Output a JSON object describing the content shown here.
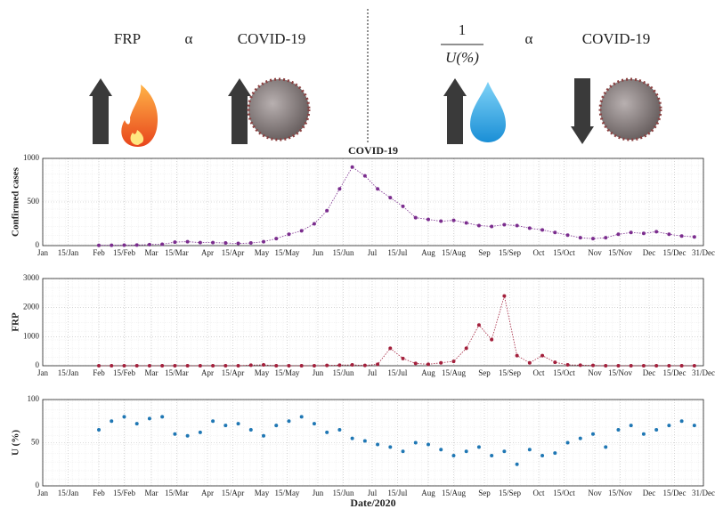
{
  "header": {
    "left": {
      "a": "FRP",
      "rel": "α",
      "b": "COVID-19"
    },
    "right": {
      "numerator": "1",
      "denominator": "U(%)",
      "rel": "α",
      "b": "COVID-19"
    }
  },
  "chart_data": [
    {
      "type": "line",
      "title": "COVID-19",
      "ylabel": "Confirmed cases",
      "x": [
        "1/Feb",
        "8/Feb",
        "15/Feb",
        "22/Feb",
        "29/Feb",
        "7/Mar",
        "14/Mar",
        "21/Mar",
        "28/Mar",
        "4/Apr",
        "11/Apr",
        "18/Apr",
        "25/Apr",
        "2/May",
        "9/May",
        "16/May",
        "23/May",
        "30/May",
        "6/Jun",
        "13/Jun",
        "20/Jun",
        "27/Jun",
        "4/Jul",
        "11/Jul",
        "18/Jul",
        "25/Jul",
        "1/Aug",
        "8/Aug",
        "15/Aug",
        "22/Aug",
        "29/Aug",
        "5/Sep",
        "12/Sep",
        "19/Sep",
        "26/Sep",
        "3/Oct",
        "10/Oct",
        "17/Oct",
        "24/Oct",
        "31/Oct",
        "7/Nov",
        "14/Nov",
        "21/Nov",
        "28/Nov",
        "5/Dec",
        "12/Dec",
        "19/Dec",
        "26/Dec"
      ],
      "series": [
        {
          "name": "Confirmed cases",
          "color": "#7b2d8e",
          "values": [
            3,
            4,
            5,
            6,
            12,
            15,
            40,
            45,
            35,
            35,
            30,
            25,
            30,
            45,
            80,
            130,
            170,
            250,
            400,
            650,
            900,
            800,
            650,
            550,
            450,
            320,
            300,
            280,
            290,
            260,
            230,
            220,
            240,
            230,
            200,
            180,
            150,
            120,
            90,
            80,
            90,
            130,
            150,
            140,
            160,
            130,
            110,
            100
          ]
        }
      ],
      "xlim": [
        "Jan",
        "31/Dec"
      ],
      "xticks": [
        "Jan",
        "15/Jan",
        "Feb",
        "15/Feb",
        "Mar",
        "15/Mar",
        "Apr",
        "15/Apr",
        "May",
        "15/May",
        "Jun",
        "15/Jun",
        "Jul",
        "15/Jul",
        "Aug",
        "15/Aug",
        "Sep",
        "15/Sep",
        "Oct",
        "15/Oct",
        "Nov",
        "15/Nov",
        "Dec",
        "15/Dec",
        "31/Dec"
      ],
      "ylim": [
        0,
        1000
      ],
      "yticks": [
        0,
        500,
        1000
      ],
      "grid": true
    },
    {
      "type": "line",
      "ylabel": "FRP",
      "x": [
        "1/Feb",
        "8/Feb",
        "15/Feb",
        "22/Feb",
        "29/Feb",
        "7/Mar",
        "14/Mar",
        "21/Mar",
        "28/Mar",
        "4/Apr",
        "11/Apr",
        "18/Apr",
        "25/Apr",
        "2/May",
        "9/May",
        "16/May",
        "23/May",
        "30/May",
        "6/Jun",
        "13/Jun",
        "20/Jun",
        "27/Jun",
        "4/Jul",
        "11/Jul",
        "18/Jul",
        "25/Jul",
        "1/Aug",
        "8/Aug",
        "15/Aug",
        "22/Aug",
        "29/Aug",
        "5/Sep",
        "12/Sep",
        "19/Sep",
        "26/Sep",
        "3/Oct",
        "10/Oct",
        "17/Oct",
        "24/Oct",
        "31/Oct",
        "7/Nov",
        "14/Nov",
        "21/Nov",
        "28/Nov",
        "5/Dec",
        "12/Dec",
        "19/Dec",
        "26/Dec"
      ],
      "series": [
        {
          "name": "FRP",
          "color": "#a3203c",
          "values": [
            0,
            0,
            0,
            0,
            0,
            0,
            0,
            0,
            0,
            0,
            0,
            0,
            20,
            30,
            0,
            0,
            0,
            0,
            10,
            20,
            30,
            10,
            50,
            600,
            250,
            80,
            50,
            100,
            150,
            600,
            1400,
            900,
            2400,
            350,
            100,
            350,
            120,
            30,
            20,
            10,
            0,
            0,
            0,
            0,
            0,
            0,
            0,
            0
          ]
        }
      ],
      "xlim": [
        "Jan",
        "31/Dec"
      ],
      "xticks": [
        "Jan",
        "15/Jan",
        "Feb",
        "15/Feb",
        "Mar",
        "15/Mar",
        "Apr",
        "15/Apr",
        "May",
        "15/May",
        "Jun",
        "15/Jun",
        "Jul",
        "15/Jul",
        "Aug",
        "15/Aug",
        "Sep",
        "15/Sep",
        "Oct",
        "15/Oct",
        "Nov",
        "15/Nov",
        "Dec",
        "15/Dec",
        "31/Dec"
      ],
      "ylim": [
        0,
        3000
      ],
      "yticks": [
        0,
        1000,
        2000,
        3000
      ],
      "grid": true
    },
    {
      "type": "scatter",
      "ylabel": "U (%)",
      "xlabel": "Date/2020",
      "x": [
        "1/Feb",
        "8/Feb",
        "15/Feb",
        "22/Feb",
        "29/Feb",
        "7/Mar",
        "14/Mar",
        "21/Mar",
        "28/Mar",
        "4/Apr",
        "11/Apr",
        "18/Apr",
        "25/Apr",
        "2/May",
        "9/May",
        "16/May",
        "23/May",
        "30/May",
        "6/Jun",
        "13/Jun",
        "20/Jun",
        "27/Jun",
        "4/Jul",
        "11/Jul",
        "18/Jul",
        "25/Jul",
        "1/Aug",
        "8/Aug",
        "15/Aug",
        "22/Aug",
        "29/Aug",
        "5/Sep",
        "12/Sep",
        "19/Sep",
        "26/Sep",
        "3/Oct",
        "10/Oct",
        "17/Oct",
        "24/Oct",
        "31/Oct",
        "7/Nov",
        "14/Nov",
        "21/Nov",
        "28/Nov",
        "5/Dec",
        "12/Dec",
        "19/Dec",
        "26/Dec"
      ],
      "series": [
        {
          "name": "U (%)",
          "color": "#1f77b4",
          "values": [
            65,
            75,
            80,
            72,
            78,
            80,
            60,
            58,
            62,
            75,
            70,
            72,
            65,
            58,
            70,
            75,
            80,
            72,
            62,
            65,
            55,
            52,
            48,
            45,
            40,
            50,
            48,
            42,
            35,
            40,
            45,
            35,
            40,
            25,
            42,
            35,
            38,
            50,
            55,
            60,
            45,
            65,
            70,
            60,
            65,
            70,
            75,
            70
          ]
        }
      ],
      "xlim": [
        "Jan",
        "31/Dec"
      ],
      "xticks": [
        "Jan",
        "15/Jan",
        "Feb",
        "15/Feb",
        "Mar",
        "15/Mar",
        "Apr",
        "15/Apr",
        "May",
        "15/May",
        "Jun",
        "15/Jun",
        "Jul",
        "15/Jul",
        "Aug",
        "15/Aug",
        "Sep",
        "15/Sep",
        "Oct",
        "15/Oct",
        "Nov",
        "15/Nov",
        "Dec",
        "15/Dec",
        "31/Dec"
      ],
      "ylim": [
        0,
        100
      ],
      "yticks": [
        0,
        50,
        100
      ],
      "grid": true
    }
  ]
}
